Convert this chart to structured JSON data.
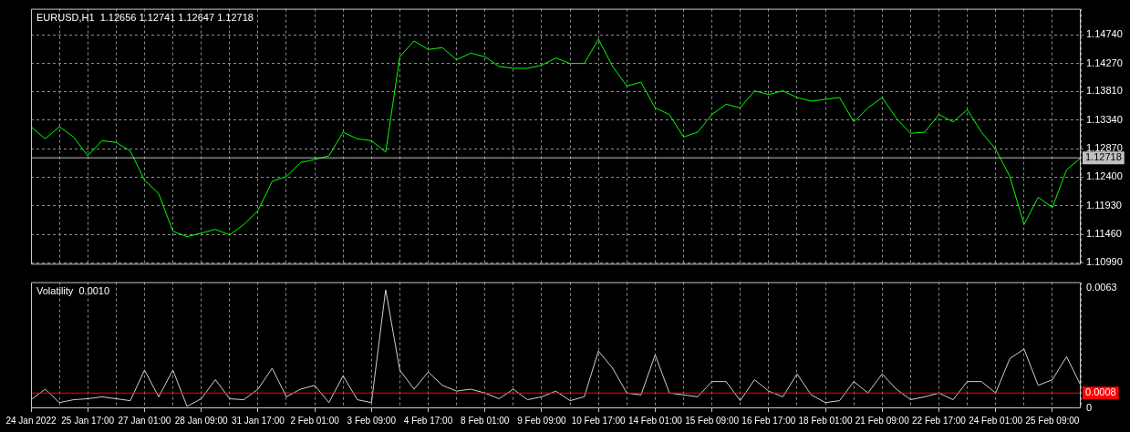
{
  "chart_data": [
    {
      "type": "line",
      "title": "EURUSD,H1  1.12656 1.12741 1.12647 1.12718",
      "categories": [
        null,
        null,
        null,
        null,
        null,
        null,
        null,
        null,
        null,
        null,
        null,
        null,
        null,
        null,
        null,
        null,
        null,
        null,
        null,
        null,
        null,
        null,
        null,
        null,
        null,
        null,
        null,
        null,
        null,
        null,
        null,
        null,
        null,
        null,
        null,
        null,
        null,
        null,
        null,
        null,
        null,
        null,
        null,
        null,
        null,
        null,
        null,
        null,
        null,
        null,
        null,
        null,
        null,
        null,
        null,
        null,
        null,
        null,
        null,
        null,
        null,
        null,
        null,
        null,
        null,
        null,
        null,
        null,
        null,
        null,
        null,
        null,
        null,
        null,
        null
      ],
      "series": [
        {
          "color": "#00ff00",
          "values": [
            1.1323,
            1.1303,
            1.1323,
            1.1306,
            1.1275,
            1.13,
            1.1297,
            1.1283,
            1.1235,
            1.1213,
            1.1151,
            1.1142,
            1.1148,
            1.1154,
            1.1145,
            1.1162,
            1.1185,
            1.1233,
            1.1241,
            1.1264,
            1.1269,
            1.1275,
            1.1314,
            1.1303,
            1.13,
            1.1281,
            1.1438,
            1.1464,
            1.145,
            1.1453,
            1.1433,
            1.1444,
            1.1438,
            1.1422,
            1.1419,
            1.1419,
            1.1424,
            1.1436,
            1.1427,
            1.1427,
            1.1467,
            1.1422,
            1.139,
            1.1396,
            1.1354,
            1.1343,
            1.1306,
            1.1314,
            1.1343,
            1.136,
            1.1354,
            1.1382,
            1.1376,
            1.1382,
            1.1371,
            1.1365,
            1.1368,
            1.1371,
            1.1331,
            1.1354,
            1.1371,
            1.1337,
            1.1312,
            1.1314,
            1.1343,
            1.1331,
            1.1351,
            1.1314,
            1.1286,
            1.1241,
            1.1162,
            1.1207,
            1.119,
            1.1252,
            1.12718
          ]
        }
      ],
      "ylim": [
        1.1096,
        1.1517
      ],
      "yticks": [
        {
          "value": 1.1099,
          "label": "1.10990"
        },
        {
          "value": 1.1146,
          "label": "1.11460"
        },
        {
          "value": 1.1193,
          "label": "1.11930"
        },
        {
          "value": 1.124,
          "label": "1.12400"
        },
        {
          "value": 1.1287,
          "label": "1.12870"
        },
        {
          "value": 1.1334,
          "label": "1.13340"
        },
        {
          "value": 1.1381,
          "label": "1.13810"
        },
        {
          "value": 1.1427,
          "label": "1.14270"
        },
        {
          "value": 1.1474,
          "label": "1.14740"
        }
      ],
      "ref_lines": [
        {
          "axis": "y",
          "value": 1.12718,
          "label": "1.12718",
          "color": "#c0c0c0"
        }
      ],
      "grid": true,
      "legend": false,
      "marker": "none",
      "line_style": "solid",
      "tick_labels": "y"
    },
    {
      "type": "line",
      "title": "Volatility  0.0010",
      "categories": [
        "24 Jan 2022",
        null,
        null,
        null,
        "25 Jan 17:00",
        null,
        null,
        null,
        "27 Jan 01:00",
        null,
        null,
        null,
        "28 Jan 09:00",
        null,
        null,
        null,
        "31 Jan 17:00",
        null,
        null,
        null,
        "2 Feb 01:00",
        null,
        null,
        null,
        "3 Feb 09:00",
        null,
        null,
        null,
        "4 Feb 17:00",
        null,
        null,
        null,
        "8 Feb 01:00",
        null,
        null,
        null,
        "9 Feb 09:00",
        null,
        null,
        null,
        "10 Feb 17:00",
        null,
        null,
        null,
        "14 Feb 01:00",
        null,
        null,
        null,
        "15 Feb 09:00",
        null,
        null,
        null,
        "16 Feb 17:00",
        null,
        null,
        null,
        "18 Feb 01:00",
        null,
        null,
        null,
        "21 Feb 09:00",
        null,
        null,
        null,
        "22 Feb 17:00",
        null,
        null,
        null,
        "24 Feb 01:00",
        null,
        null,
        null,
        "25 Feb 09:00",
        null,
        null
      ],
      "series": [
        {
          "color": "#d0d0d0",
          "values": [
            0.00045,
            0.001,
            0.0003,
            0.00045,
            0.0005,
            0.0006,
            0.0005,
            0.0004,
            0.002,
            0.0006,
            0.002,
            0.0001,
            0.0005,
            0.0015,
            0.0005,
            0.00045,
            0.001,
            0.0021,
            0.0006,
            0.001,
            0.0012,
            0.0003,
            0.0017,
            0.00045,
            0.0003,
            0.0062,
            0.002,
            0.001,
            0.0019,
            0.0012,
            0.0009,
            0.001,
            0.0008,
            0.0005,
            0.001,
            0.00045,
            0.0006,
            0.0009,
            0.0004,
            0.0006,
            0.003,
            0.0021,
            0.0008,
            0.0007,
            0.0028,
            0.0008,
            0.0007,
            0.0006,
            0.0014,
            0.0014,
            0.0004,
            0.0015,
            0.0009,
            0.0006,
            0.0018,
            0.0007,
            0.0003,
            0.0004,
            0.0014,
            0.0008,
            0.0018,
            0.001,
            0.00045,
            0.0006,
            0.0008,
            0.00045,
            0.0014,
            0.0014,
            0.0008,
            0.0026,
            0.0031,
            0.0012,
            0.0015,
            0.0027,
            0.0012
          ]
        }
      ],
      "ylim": [
        0,
        0.0066
      ],
      "yticks": [
        0,
        0.0063
      ],
      "ref_lines": [
        {
          "axis": "y",
          "value": 0.0008,
          "label": "0.0008",
          "color": "#ff0000"
        }
      ],
      "grid": "x",
      "legend": false,
      "marker": "none",
      "line_style": "solid"
    }
  ]
}
